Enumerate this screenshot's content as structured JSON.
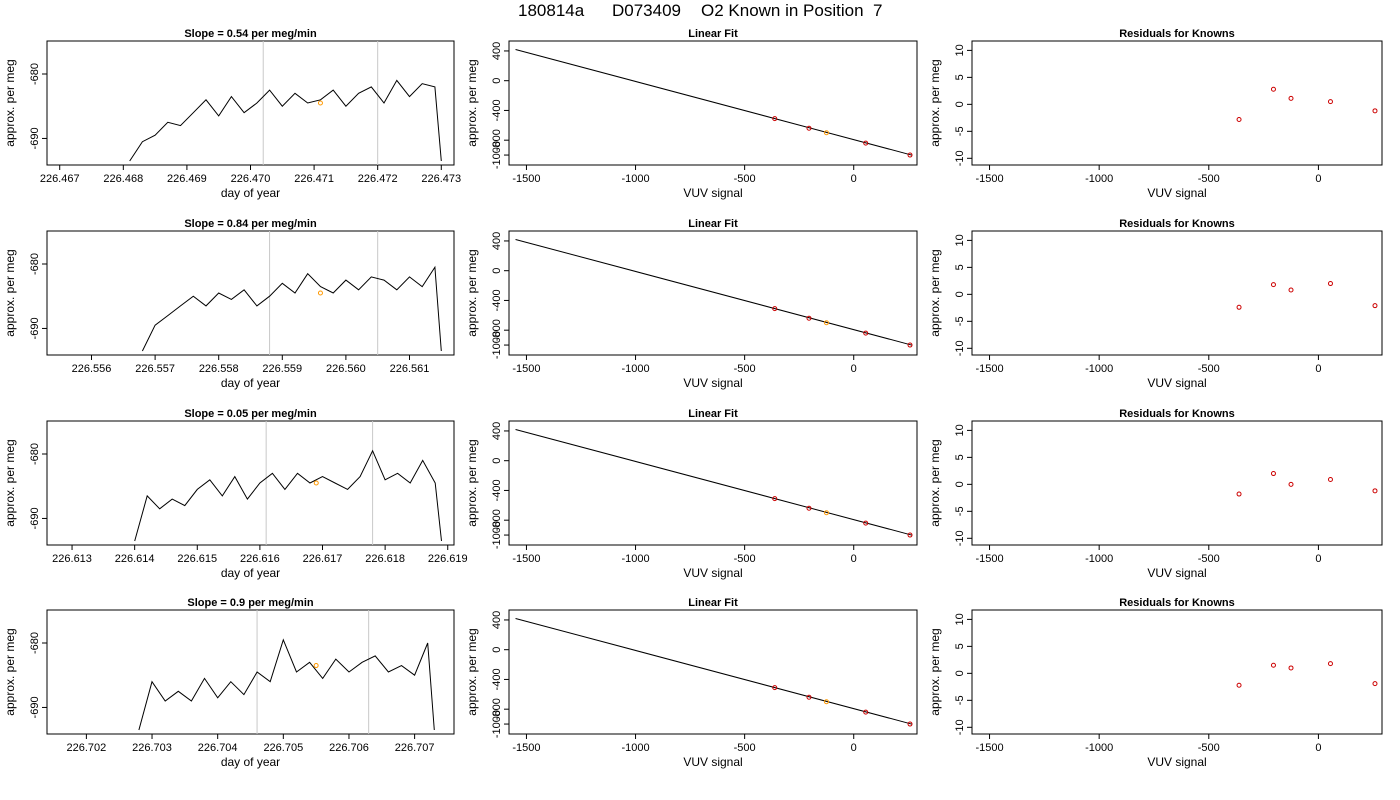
{
  "figure": {
    "title_parts": [
      "180814a",
      "D073409",
      "O2 Known in Position  7"
    ],
    "colors": {
      "line": "#000000",
      "frame": "#000000",
      "marker_vline": "#c8c8c8",
      "highlight": "#ff9900",
      "residual": "#cc0000"
    },
    "rows": [
      {
        "time_panel": {
          "title": "Slope =  0.54  per meg/min",
          "xlabel": "day of year",
          "ylabel": "approx. per meg",
          "x_ticks": [
            "226.467",
            "226.468",
            "226.469",
            "226.470",
            "226.471",
            "226.472",
            "226.473"
          ],
          "y_ticks": [
            "-690",
            "-680"
          ]
        },
        "fit_panel": {
          "title": "Linear Fit",
          "xlabel": "VUV signal",
          "ylabel": "approx. per meg",
          "x_ticks": [
            "-1500",
            "-1000",
            "-500",
            "0"
          ],
          "y_ticks": [
            "-1000",
            "-800",
            "-400",
            "0",
            "400"
          ]
        },
        "resid_panel": {
          "title": "Residuals for Knowns",
          "xlabel": "VUV signal",
          "ylabel": "approx. per meg",
          "x_ticks": [
            "-1500",
            "-1000",
            "-500",
            "0"
          ],
          "y_ticks": [
            "-10",
            "-5",
            "0",
            "5",
            "10"
          ]
        }
      },
      {
        "time_panel": {
          "title": "Slope =  0.84  per meg/min",
          "xlabel": "day of year",
          "ylabel": "approx. per meg",
          "x_ticks": [
            "226.556",
            "226.557",
            "226.558",
            "226.559",
            "226.560",
            "226.561"
          ],
          "y_ticks": [
            "-690",
            "-680"
          ]
        },
        "fit_panel": {
          "title": "Linear Fit",
          "xlabel": "VUV signal",
          "ylabel": "approx. per meg",
          "x_ticks": [
            "-1500",
            "-1000",
            "-500",
            "0"
          ],
          "y_ticks": [
            "-1000",
            "-800",
            "-400",
            "0",
            "400"
          ]
        },
        "resid_panel": {
          "title": "Residuals for Knowns",
          "xlabel": "VUV signal",
          "ylabel": "approx. per meg",
          "x_ticks": [
            "-1500",
            "-1000",
            "-500",
            "0"
          ],
          "y_ticks": [
            "-10",
            "-5",
            "0",
            "5",
            "10"
          ]
        }
      },
      {
        "time_panel": {
          "title": "Slope =  0.05  per meg/min",
          "xlabel": "day of year",
          "ylabel": "approx. per meg",
          "x_ticks": [
            "226.613",
            "226.614",
            "226.615",
            "226.616",
            "226.617",
            "226.618",
            "226.619"
          ],
          "y_ticks": [
            "-690",
            "-680"
          ]
        },
        "fit_panel": {
          "title": "Linear Fit",
          "xlabel": "VUV signal",
          "ylabel": "approx. per meg",
          "x_ticks": [
            "-1500",
            "-1000",
            "-500",
            "0"
          ],
          "y_ticks": [
            "-1000",
            "-800",
            "-400",
            "0",
            "400"
          ]
        },
        "resid_panel": {
          "title": "Residuals for Knowns",
          "xlabel": "VUV signal",
          "ylabel": "approx. per meg",
          "x_ticks": [
            "-1500",
            "-1000",
            "-500",
            "0"
          ],
          "y_ticks": [
            "-10",
            "-5",
            "0",
            "5",
            "10"
          ]
        }
      },
      {
        "time_panel": {
          "title": "Slope =  0.9  per meg/min",
          "xlabel": "day of year",
          "ylabel": "approx. per meg",
          "x_ticks": [
            "226.702",
            "226.703",
            "226.704",
            "226.705",
            "226.706",
            "226.707"
          ],
          "y_ticks": [
            "-690",
            "-680"
          ]
        },
        "fit_panel": {
          "title": "Linear Fit",
          "xlabel": "VUV signal",
          "ylabel": "approx. per meg",
          "x_ticks": [
            "-1500",
            "-1000",
            "-500",
            "0"
          ],
          "y_ticks": [
            "-1000",
            "-800",
            "-400",
            "0",
            "400"
          ]
        },
        "resid_panel": {
          "title": "Residuals for Knowns",
          "xlabel": "VUV signal",
          "ylabel": "approx. per meg",
          "x_ticks": [
            "-1500",
            "-1000",
            "-500",
            "0"
          ],
          "y_ticks": [
            "-10",
            "-5",
            "0",
            "5",
            "10"
          ]
        }
      }
    ]
  },
  "chart_data": [
    {
      "type": "line",
      "title": "Slope =  0.54  per meg/min",
      "xlabel": "day of year",
      "ylabel": "approx. per meg",
      "xlim": [
        226.4668,
        226.4732
      ],
      "ylim": [
        -693.5,
        -675.5
      ],
      "vlines": [
        226.4702,
        226.472
      ],
      "highlight_point": {
        "x": 226.4711,
        "y": -684.5
      },
      "x": [
        226.4681,
        226.4683,
        226.4685,
        226.4687,
        226.4689,
        226.4691,
        226.4693,
        226.4695,
        226.4697,
        226.4699,
        226.4701,
        226.4703,
        226.4705,
        226.4707,
        226.4709,
        226.4711,
        226.4713,
        226.4715,
        226.4717,
        226.4719,
        226.4721,
        226.4723,
        226.4725,
        226.4727,
        226.4729,
        226.473
      ],
      "y": [
        -693.5,
        -690.5,
        -689.5,
        -687.5,
        -688.0,
        -686.0,
        -684.0,
        -686.5,
        -683.5,
        -686.0,
        -684.5,
        -682.5,
        -685.0,
        -683.0,
        -684.5,
        -684.0,
        -682.5,
        -685.0,
        -683.0,
        -682.0,
        -684.5,
        -681.0,
        -683.5,
        -681.5,
        -682.0,
        -693.5
      ]
    },
    {
      "type": "scatter",
      "title": "Linear Fit",
      "xlabel": "VUV signal",
      "ylabel": "approx. per meg",
      "xlim": [
        -1580,
        290
      ],
      "ylim": [
        -1080,
        480
      ],
      "fit_line": {
        "x": [
          -1550,
          265
        ],
        "y": [
          420,
          -1000
        ]
      },
      "x": [
        -362,
        -205,
        -125,
        55,
        258
      ],
      "y": [
        -510,
        -640,
        -700,
        -840,
        -1000
      ],
      "highlight_index": 2
    },
    {
      "type": "scatter",
      "title": "Residuals for Knowns",
      "xlabel": "VUV signal",
      "ylabel": "approx. per meg",
      "xlim": [
        -1580,
        290
      ],
      "ylim": [
        -10.5,
        11
      ],
      "x": [
        -362,
        -205,
        -125,
        55,
        258
      ],
      "y": [
        -2.8,
        2.8,
        1.1,
        0.5,
        -1.2
      ]
    },
    {
      "type": "line",
      "title": "Slope =  0.84  per meg/min",
      "xlabel": "day of year",
      "ylabel": "approx. per meg",
      "xlim": [
        226.5553,
        226.5617
      ],
      "ylim": [
        -693.5,
        -675.5
      ],
      "vlines": [
        226.5588,
        226.5605
      ],
      "highlight_point": {
        "x": 226.5596,
        "y": -684.5
      },
      "x": [
        226.5568,
        226.557,
        226.5572,
        226.5574,
        226.5576,
        226.5578,
        226.558,
        226.5582,
        226.5584,
        226.5586,
        226.5588,
        226.559,
        226.5592,
        226.5594,
        226.5596,
        226.5598,
        226.56,
        226.5602,
        226.5604,
        226.5606,
        226.5608,
        226.561,
        226.5612,
        226.5614,
        226.5615
      ],
      "y": [
        -693.5,
        -689.5,
        -688.0,
        -686.5,
        -685.0,
        -686.5,
        -684.5,
        -685.5,
        -684.0,
        -686.5,
        -685.0,
        -683.0,
        -684.5,
        -681.5,
        -683.5,
        -684.5,
        -682.5,
        -684.0,
        -682.0,
        -682.5,
        -684.0,
        -682.0,
        -683.5,
        -680.5,
        -693.5
      ]
    },
    {
      "type": "scatter",
      "title": "Linear Fit",
      "xlabel": "VUV signal",
      "ylabel": "approx. per meg",
      "xlim": [
        -1580,
        290
      ],
      "ylim": [
        -1080,
        480
      ],
      "fit_line": {
        "x": [
          -1550,
          265
        ],
        "y": [
          420,
          -1000
        ]
      },
      "x": [
        -362,
        -205,
        -125,
        55,
        258
      ],
      "y": [
        -510,
        -640,
        -700,
        -840,
        -1000
      ],
      "highlight_index": 2
    },
    {
      "type": "scatter",
      "title": "Residuals for Knowns",
      "xlabel": "VUV signal",
      "ylabel": "approx. per meg",
      "xlim": [
        -1580,
        290
      ],
      "ylim": [
        -10.5,
        11
      ],
      "x": [
        -362,
        -205,
        -125,
        55,
        258
      ],
      "y": [
        -2.4,
        1.8,
        0.8,
        2.0,
        -2.1
      ]
    },
    {
      "type": "line",
      "title": "Slope =  0.05  per meg/min",
      "xlabel": "day of year",
      "ylabel": "approx. per meg",
      "xlim": [
        226.6126,
        226.6191
      ],
      "ylim": [
        -693.5,
        -675.5
      ],
      "vlines": [
        226.6161,
        226.6178
      ],
      "highlight_point": {
        "x": 226.6169,
        "y": -684.5
      },
      "x": [
        226.614,
        226.6142,
        226.6144,
        226.6146,
        226.6148,
        226.615,
        226.6152,
        226.6154,
        226.6156,
        226.6158,
        226.616,
        226.6162,
        226.6164,
        226.6166,
        226.6168,
        226.617,
        226.6172,
        226.6174,
        226.6176,
        226.6178,
        226.618,
        226.6182,
        226.6184,
        226.6186,
        226.6188,
        226.6189
      ],
      "y": [
        -693.5,
        -686.5,
        -688.5,
        -687.0,
        -688.0,
        -685.5,
        -684.0,
        -686.5,
        -683.5,
        -687.0,
        -684.5,
        -683.0,
        -685.5,
        -683.0,
        -684.5,
        -683.5,
        -684.5,
        -685.5,
        -683.5,
        -679.5,
        -684.0,
        -683.0,
        -684.5,
        -681.0,
        -684.5,
        -693.5
      ]
    },
    {
      "type": "scatter",
      "title": "Linear Fit",
      "xlabel": "VUV signal",
      "ylabel": "approx. per meg",
      "xlim": [
        -1580,
        290
      ],
      "ylim": [
        -1080,
        480
      ],
      "fit_line": {
        "x": [
          -1550,
          265
        ],
        "y": [
          420,
          -1000
        ]
      },
      "x": [
        -362,
        -205,
        -125,
        55,
        258
      ],
      "y": [
        -510,
        -640,
        -700,
        -840,
        -1000
      ],
      "highlight_index": 2
    },
    {
      "type": "scatter",
      "title": "Residuals for Knowns",
      "xlabel": "VUV signal",
      "ylabel": "approx. per meg",
      "xlim": [
        -1580,
        290
      ],
      "ylim": [
        -10.5,
        11
      ],
      "x": [
        -362,
        -205,
        -125,
        55,
        258
      ],
      "y": [
        -1.8,
        2.0,
        0.0,
        0.9,
        -1.2
      ]
    },
    {
      "type": "line",
      "title": "Slope =  0.9  per meg/min",
      "xlabel": "day of year",
      "ylabel": "approx. per meg",
      "xlim": [
        226.7014,
        226.7076
      ],
      "ylim": [
        -693.5,
        -675.5
      ],
      "vlines": [
        226.7046,
        226.7063
      ],
      "highlight_point": {
        "x": 226.7055,
        "y": -683.5
      },
      "x": [
        226.7028,
        226.703,
        226.7032,
        226.7034,
        226.7036,
        226.7038,
        226.704,
        226.7042,
        226.7044,
        226.7046,
        226.7048,
        226.705,
        226.7052,
        226.7054,
        226.7056,
        226.7058,
        226.706,
        226.7062,
        226.7064,
        226.7066,
        226.7068,
        226.707,
        226.7072,
        226.7073
      ],
      "y": [
        -693.5,
        -686.0,
        -689.0,
        -687.5,
        -689.0,
        -685.5,
        -688.5,
        -686.0,
        -688.0,
        -684.5,
        -686.0,
        -679.5,
        -684.5,
        -683.0,
        -685.5,
        -682.5,
        -684.5,
        -683.0,
        -682.0,
        -684.5,
        -683.5,
        -685.0,
        -680.0,
        -693.5
      ]
    },
    {
      "type": "scatter",
      "title": "Linear Fit",
      "xlabel": "VUV signal",
      "ylabel": "approx. per meg",
      "xlim": [
        -1580,
        290
      ],
      "ylim": [
        -1080,
        480
      ],
      "fit_line": {
        "x": [
          -1550,
          265
        ],
        "y": [
          420,
          -1000
        ]
      },
      "x": [
        -362,
        -205,
        -125,
        55,
        258
      ],
      "y": [
        -510,
        -640,
        -700,
        -840,
        -1000
      ],
      "highlight_index": 2
    },
    {
      "type": "scatter",
      "title": "Residuals for Knowns",
      "xlabel": "VUV signal",
      "ylabel": "approx. per meg",
      "xlim": [
        -1580,
        290
      ],
      "ylim": [
        -10.5,
        11
      ],
      "x": [
        -362,
        -205,
        -125,
        55,
        258
      ],
      "y": [
        -2.2,
        1.5,
        1.0,
        1.8,
        -1.9
      ]
    }
  ]
}
